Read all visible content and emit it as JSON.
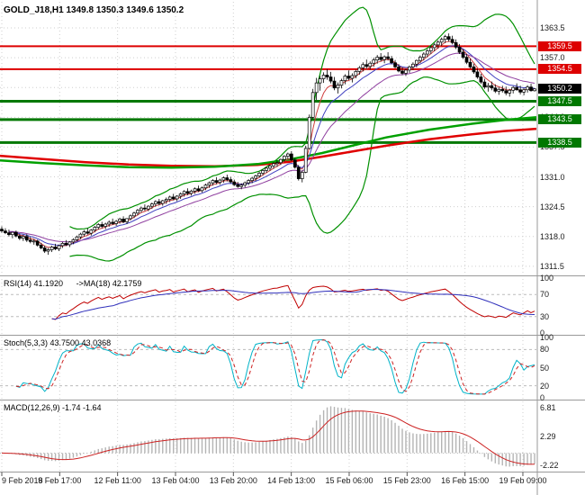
{
  "header": {
    "title": "GOLD_J18,H1 1349.8 1350.3 1349.6 1350.2"
  },
  "chart_data": {
    "type": "candlestick",
    "symbol": "GOLD_J18",
    "timeframe": "H1",
    "grid_color": "#cfcfcf",
    "x_axis": {
      "labels": [
        "9 Feb 2018",
        "9 Feb 17:00",
        "12 Feb 11:00",
        "13 Feb 04:00",
        "13 Feb 20:00",
        "14 Feb 13:00",
        "15 Feb 06:00",
        "15 Feb 23:00",
        "16 Feb 15:00",
        "19 Feb 09:00"
      ]
    },
    "main": {
      "price_range": {
        "min": 1309.7,
        "max": 1369.2
      },
      "y_axis_labels": [
        "1363.5",
        "1357.0",
        "1350.5",
        "1344.0",
        "1337.5",
        "1331.0",
        "1324.5",
        "1318.0",
        "1311.5"
      ],
      "current_price": {
        "label": "1350.2",
        "price": 1350.2,
        "color": "#000000"
      },
      "levels": [
        {
          "price": 1359.5,
          "label": "1359.5",
          "color": "#dd0000",
          "width": 2,
          "kind": "resistance"
        },
        {
          "price": 1354.5,
          "label": "1354.5",
          "color": "#dd0000",
          "width": 2,
          "kind": "resistance"
        },
        {
          "price": 1347.5,
          "label": "1347.5",
          "color": "#007800",
          "width": 3,
          "kind": "support"
        },
        {
          "price": 1343.5,
          "label": "1343.5",
          "color": "#007800",
          "width": 3,
          "kind": "support"
        },
        {
          "price": 1338.5,
          "label": "1338.5",
          "color": "#007800",
          "width": 3,
          "kind": "support"
        }
      ],
      "trend_lines": [
        {
          "name": "red-ma",
          "color": "#e00000",
          "width": 2.5,
          "points": [
            [
              0,
              1335.6
            ],
            [
              0.08,
              1334.9
            ],
            [
              0.16,
              1334.2
            ],
            [
              0.24,
              1333.7
            ],
            [
              0.32,
              1333.4
            ],
            [
              0.4,
              1333.3
            ],
            [
              0.48,
              1333.6
            ],
            [
              0.54,
              1334.3
            ],
            [
              0.6,
              1335.4
            ],
            [
              0.66,
              1336.6
            ],
            [
              0.72,
              1337.8
            ],
            [
              0.8,
              1339.2
            ],
            [
              0.88,
              1340.3
            ],
            [
              0.94,
              1341.0
            ],
            [
              1,
              1341.5
            ]
          ]
        },
        {
          "name": "green-ma",
          "color": "#00a000",
          "width": 2.5,
          "points": [
            [
              0,
              1334.6
            ],
            [
              0.08,
              1334.0
            ],
            [
              0.16,
              1333.5
            ],
            [
              0.24,
              1333.1
            ],
            [
              0.32,
              1333.0
            ],
            [
              0.4,
              1333.2
            ],
            [
              0.48,
              1333.8
            ],
            [
              0.54,
              1334.8
            ],
            [
              0.6,
              1336.2
            ],
            [
              0.66,
              1337.9
            ],
            [
              0.72,
              1339.6
            ],
            [
              0.8,
              1341.3
            ],
            [
              0.88,
              1342.6
            ],
            [
              0.94,
              1343.4
            ],
            [
              1,
              1344.0
            ]
          ]
        }
      ],
      "overlays": {
        "bollinger": {
          "period": 20,
          "deviation": 2.5,
          "color": "#009000"
        },
        "emas": [
          {
            "period": 5,
            "color": "#d04040"
          },
          {
            "period": 10,
            "color": "#4040c0"
          },
          {
            "period": 20,
            "color": "#9040a0"
          }
        ]
      },
      "candles": [
        [
          1319.6,
          1320.2,
          1318.8,
          1319.2
        ],
        [
          1319.2,
          1319.8,
          1318.5,
          1318.8
        ],
        [
          1318.8,
          1319.5,
          1318.0,
          1318.4
        ],
        [
          1318.4,
          1319.0,
          1317.6,
          1318.9
        ],
        [
          1318.9,
          1319.3,
          1317.8,
          1318.1
        ],
        [
          1318.1,
          1318.6,
          1317.2,
          1317.6
        ],
        [
          1317.6,
          1318.4,
          1317.0,
          1318.0
        ],
        [
          1318.0,
          1318.5,
          1316.8,
          1317.2
        ],
        [
          1317.2,
          1317.9,
          1316.5,
          1316.9
        ],
        [
          1316.9,
          1317.5,
          1316.2,
          1317.0
        ],
        [
          1317.0,
          1317.3,
          1315.8,
          1316.1
        ],
        [
          1316.1,
          1316.6,
          1315.2,
          1315.5
        ],
        [
          1315.5,
          1316.0,
          1314.4,
          1314.8
        ],
        [
          1314.8,
          1315.5,
          1314.0,
          1315.1
        ],
        [
          1315.1,
          1316.0,
          1314.6,
          1315.7
        ],
        [
          1315.7,
          1316.4,
          1315.0,
          1315.3
        ],
        [
          1315.3,
          1316.2,
          1314.8,
          1316.0
        ],
        [
          1316.0,
          1316.8,
          1315.5,
          1316.5
        ],
        [
          1316.5,
          1317.2,
          1315.9,
          1316.2
        ],
        [
          1316.2,
          1317.0,
          1315.7,
          1316.8
        ],
        [
          1316.8,
          1317.6,
          1316.3,
          1317.3
        ],
        [
          1317.3,
          1318.2,
          1316.9,
          1317.9
        ],
        [
          1317.9,
          1318.8,
          1317.4,
          1318.5
        ],
        [
          1318.5,
          1319.4,
          1318.0,
          1319.0
        ],
        [
          1319.0,
          1319.8,
          1318.4,
          1318.7
        ],
        [
          1318.7,
          1319.6,
          1318.2,
          1319.4
        ],
        [
          1319.4,
          1320.3,
          1318.9,
          1320.0
        ],
        [
          1320.0,
          1320.9,
          1319.5,
          1320.6
        ],
        [
          1320.6,
          1321.2,
          1319.8,
          1320.2
        ],
        [
          1320.2,
          1321.0,
          1319.6,
          1320.7
        ],
        [
          1320.7,
          1321.5,
          1320.1,
          1321.1
        ],
        [
          1321.1,
          1321.9,
          1320.5,
          1320.8
        ],
        [
          1320.8,
          1321.6,
          1320.3,
          1321.3
        ],
        [
          1321.3,
          1322.1,
          1320.8,
          1321.8
        ],
        [
          1321.8,
          1322.4,
          1320.9,
          1321.2
        ],
        [
          1321.2,
          1322.0,
          1320.7,
          1321.9
        ],
        [
          1321.9,
          1322.8,
          1321.5,
          1322.5
        ],
        [
          1322.5,
          1323.4,
          1322.0,
          1323.1
        ],
        [
          1323.1,
          1324.0,
          1322.6,
          1323.7
        ],
        [
          1323.7,
          1324.5,
          1323.2,
          1324.2
        ],
        [
          1324.2,
          1325.0,
          1323.6,
          1324.0
        ],
        [
          1324.0,
          1324.8,
          1323.5,
          1324.6
        ],
        [
          1324.6,
          1325.4,
          1324.0,
          1325.1
        ],
        [
          1325.1,
          1325.9,
          1324.5,
          1325.6
        ],
        [
          1325.6,
          1326.2,
          1324.8,
          1325.2
        ],
        [
          1325.2,
          1326.0,
          1324.7,
          1325.8
        ],
        [
          1325.8,
          1326.5,
          1325.1,
          1326.1
        ],
        [
          1326.1,
          1326.9,
          1325.5,
          1326.6
        ],
        [
          1326.6,
          1327.3,
          1325.9,
          1326.2
        ],
        [
          1326.2,
          1327.0,
          1325.7,
          1326.8
        ],
        [
          1326.8,
          1327.6,
          1326.2,
          1327.3
        ],
        [
          1327.3,
          1328.1,
          1326.7,
          1327.8
        ],
        [
          1327.8,
          1328.5,
          1327.0,
          1327.4
        ],
        [
          1327.4,
          1328.2,
          1326.9,
          1327.9
        ],
        [
          1327.9,
          1328.7,
          1327.3,
          1328.4
        ],
        [
          1328.4,
          1329.1,
          1327.7,
          1328.0
        ],
        [
          1328.0,
          1328.9,
          1327.6,
          1328.6
        ],
        [
          1328.6,
          1329.5,
          1328.1,
          1329.2
        ],
        [
          1329.2,
          1330.0,
          1328.6,
          1329.7
        ],
        [
          1329.7,
          1330.5,
          1329.1,
          1330.2
        ],
        [
          1330.2,
          1330.9,
          1329.4,
          1329.8
        ],
        [
          1329.8,
          1330.6,
          1329.3,
          1330.3
        ],
        [
          1330.3,
          1331.1,
          1329.7,
          1330.8
        ],
        [
          1330.8,
          1331.5,
          1330.0,
          1330.4
        ],
        [
          1330.4,
          1331.0,
          1329.6,
          1329.9
        ],
        [
          1329.9,
          1330.4,
          1329.0,
          1329.3
        ],
        [
          1329.3,
          1329.9,
          1328.6,
          1328.9
        ],
        [
          1328.9,
          1329.6,
          1328.3,
          1329.2
        ],
        [
          1329.2,
          1330.0,
          1328.7,
          1329.7
        ],
        [
          1329.7,
          1330.5,
          1329.2,
          1330.2
        ],
        [
          1330.2,
          1331.0,
          1329.6,
          1330.7
        ],
        [
          1330.7,
          1331.5,
          1330.1,
          1331.2
        ],
        [
          1331.2,
          1332.1,
          1330.8,
          1331.8
        ],
        [
          1331.8,
          1332.7,
          1331.3,
          1332.4
        ],
        [
          1332.4,
          1333.2,
          1331.9,
          1332.9
        ],
        [
          1332.9,
          1333.7,
          1332.3,
          1333.4
        ],
        [
          1333.4,
          1334.2,
          1332.8,
          1333.9
        ],
        [
          1333.9,
          1334.6,
          1333.2,
          1334.1
        ],
        [
          1334.1,
          1335.0,
          1333.6,
          1334.8
        ],
        [
          1334.8,
          1335.7,
          1334.3,
          1335.5
        ],
        [
          1335.5,
          1336.3,
          1334.9,
          1336.0
        ],
        [
          1336.0,
          1336.6,
          1334.4,
          1334.7
        ],
        [
          1334.7,
          1335.2,
          1332.8,
          1333.1
        ],
        [
          1333.1,
          1333.6,
          1330.2,
          1330.6
        ],
        [
          1330.6,
          1332.4,
          1329.8,
          1332.0
        ],
        [
          1332.0,
          1337.8,
          1331.8,
          1337.2
        ],
        [
          1337.2,
          1344.6,
          1337.0,
          1344.0
        ],
        [
          1344.0,
          1350.2,
          1343.6,
          1349.4
        ],
        [
          1349.4,
          1352.6,
          1347.8,
          1351.5
        ],
        [
          1351.5,
          1353.0,
          1349.8,
          1352.4
        ],
        [
          1352.4,
          1353.8,
          1351.5,
          1353.2
        ],
        [
          1353.2,
          1354.5,
          1352.2,
          1352.8
        ],
        [
          1352.8,
          1353.9,
          1351.4,
          1351.9
        ],
        [
          1351.9,
          1352.8,
          1349.9,
          1350.4
        ],
        [
          1350.4,
          1351.6,
          1349.2,
          1351.0
        ],
        [
          1351.0,
          1352.4,
          1350.3,
          1352.0
        ],
        [
          1352.0,
          1353.4,
          1351.2,
          1353.0
        ],
        [
          1353.0,
          1354.2,
          1352.1,
          1352.5
        ],
        [
          1352.5,
          1353.6,
          1351.6,
          1353.1
        ],
        [
          1353.1,
          1354.4,
          1352.5,
          1354.0
        ],
        [
          1354.0,
          1355.2,
          1353.3,
          1354.8
        ],
        [
          1354.8,
          1356.0,
          1354.0,
          1355.5
        ],
        [
          1355.5,
          1356.6,
          1354.6,
          1355.1
        ],
        [
          1355.1,
          1356.2,
          1354.4,
          1355.8
        ],
        [
          1355.8,
          1357.0,
          1355.0,
          1356.5
        ],
        [
          1356.5,
          1357.6,
          1355.7,
          1357.1
        ],
        [
          1357.1,
          1358.0,
          1356.2,
          1356.6
        ],
        [
          1356.6,
          1357.5,
          1355.8,
          1357.2
        ],
        [
          1357.2,
          1358.2,
          1356.4,
          1356.8
        ],
        [
          1356.8,
          1357.4,
          1355.6,
          1355.9
        ],
        [
          1355.9,
          1356.5,
          1354.7,
          1355.0
        ],
        [
          1355.0,
          1355.6,
          1353.8,
          1354.1
        ],
        [
          1354.1,
          1354.9,
          1353.2,
          1353.6
        ],
        [
          1353.6,
          1354.6,
          1353.0,
          1354.3
        ],
        [
          1354.3,
          1355.3,
          1353.7,
          1355.0
        ],
        [
          1355.0,
          1356.0,
          1354.3,
          1355.6
        ],
        [
          1355.6,
          1356.6,
          1354.9,
          1356.4
        ],
        [
          1356.4,
          1357.5,
          1355.8,
          1357.1
        ],
        [
          1357.1,
          1358.2,
          1356.4,
          1357.8
        ],
        [
          1357.8,
          1358.9,
          1357.1,
          1358.5
        ],
        [
          1358.5,
          1359.6,
          1357.8,
          1359.2
        ],
        [
          1359.2,
          1360.2,
          1358.4,
          1359.8
        ],
        [
          1359.8,
          1360.8,
          1359.0,
          1360.4
        ],
        [
          1360.4,
          1361.4,
          1359.6,
          1361.0
        ],
        [
          1361.0,
          1362.0,
          1360.2,
          1361.6
        ],
        [
          1361.6,
          1362.3,
          1360.5,
          1361.0
        ],
        [
          1361.0,
          1361.8,
          1359.9,
          1360.3
        ],
        [
          1360.3,
          1361.0,
          1358.9,
          1359.3
        ],
        [
          1359.3,
          1360.0,
          1357.8,
          1358.2
        ],
        [
          1358.2,
          1358.9,
          1356.7,
          1357.1
        ],
        [
          1357.1,
          1357.8,
          1355.6,
          1356.0
        ],
        [
          1356.0,
          1356.8,
          1354.6,
          1355.0
        ],
        [
          1355.0,
          1355.7,
          1353.5,
          1353.9
        ],
        [
          1353.9,
          1354.6,
          1352.4,
          1352.8
        ],
        [
          1352.8,
          1353.5,
          1351.3,
          1351.7
        ],
        [
          1351.7,
          1352.4,
          1350.2,
          1350.6
        ],
        [
          1350.6,
          1351.5,
          1349.6,
          1350.9
        ],
        [
          1350.9,
          1351.8,
          1349.9,
          1350.4
        ],
        [
          1350.4,
          1351.2,
          1349.3,
          1349.7
        ],
        [
          1349.7,
          1350.6,
          1348.9,
          1350.1
        ],
        [
          1350.1,
          1350.9,
          1349.4,
          1349.8
        ],
        [
          1349.8,
          1350.7,
          1348.8,
          1349.3
        ],
        [
          1349.3,
          1350.2,
          1348.5,
          1349.9
        ],
        [
          1349.9,
          1350.8,
          1349.2,
          1350.5
        ],
        [
          1350.5,
          1351.4,
          1349.8,
          1350.0
        ],
        [
          1350.0,
          1350.9,
          1349.0,
          1349.5
        ],
        [
          1349.5,
          1350.4,
          1348.8,
          1350.0
        ],
        [
          1350.0,
          1351.0,
          1349.4,
          1350.6
        ],
        [
          1350.6,
          1351.3,
          1349.6,
          1349.8
        ],
        [
          1349.8,
          1350.3,
          1349.6,
          1350.2
        ]
      ]
    },
    "indicators": {
      "rsi": {
        "label": "RSI(14) 41.1920",
        "ma_label": "->MA(18) 42.1759",
        "period": 14,
        "ma_period": 18,
        "color": "#c00000",
        "ma_color": "#3030bb",
        "levels": [
          70,
          30
        ],
        "y_axis_labels": [
          "100",
          "70",
          "30",
          "0"
        ]
      },
      "stoch": {
        "label": "Stoch(5,3,3) 43.7500 43.0368",
        "k_period": 5,
        "slowing": 3,
        "d_period": 3,
        "k_color": "#00b3c8",
        "d_color": "#cc2222",
        "levels": [
          80,
          20
        ],
        "y_axis_labels": [
          "100",
          "80",
          "50",
          "20",
          "0"
        ]
      },
      "macd": {
        "label": "MACD(12,26,9) -1.74 -1.64",
        "fast": 12,
        "slow": 26,
        "signal": 9,
        "hist_color": "#b4b4b4",
        "signal_color": "#cc2222",
        "y_axis_labels": [
          "6.81",
          "2.29",
          "-2.22"
        ]
      }
    }
  }
}
